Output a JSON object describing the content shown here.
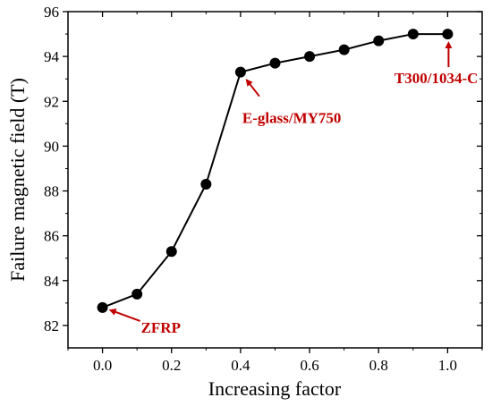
{
  "chart_data": {
    "type": "line",
    "title": "",
    "xlabel": "Increasing factor",
    "ylabel": "Failure magnetic field (T)",
    "xlim": [
      -0.1,
      1.1
    ],
    "ylim": [
      81,
      96
    ],
    "xticks": [
      0.0,
      0.2,
      0.4,
      0.6,
      0.8,
      1.0
    ],
    "xtick_labels": [
      "0.0",
      "0.2",
      "0.4",
      "0.6",
      "0.8",
      "1.0"
    ],
    "yticks": [
      82,
      84,
      86,
      88,
      90,
      92,
      94,
      96
    ],
    "ytick_labels": [
      "82",
      "84",
      "86",
      "88",
      "90",
      "92",
      "94",
      "96"
    ],
    "grid": false,
    "legend": "none",
    "series": [
      {
        "x": [
          0.0,
          0.1,
          0.2,
          0.3,
          0.4,
          0.5,
          0.6,
          0.7,
          0.8,
          0.9,
          1.0
        ],
        "y": [
          82.8,
          83.4,
          85.3,
          88.3,
          93.3,
          93.7,
          94.0,
          94.3,
          94.7,
          95.0,
          95.0
        ],
        "color": "#000000",
        "marker": "circle"
      }
    ],
    "annotations": [
      {
        "text": "ZFRP",
        "x": 0.0,
        "y": 82.8,
        "color": "#c00000"
      },
      {
        "text": "E-glass/MY750",
        "x": 0.4,
        "y": 93.3,
        "color": "#c00000"
      },
      {
        "text": "T300/1034-C",
        "x": 1.0,
        "y": 95.0,
        "color": "#c00000"
      }
    ]
  }
}
